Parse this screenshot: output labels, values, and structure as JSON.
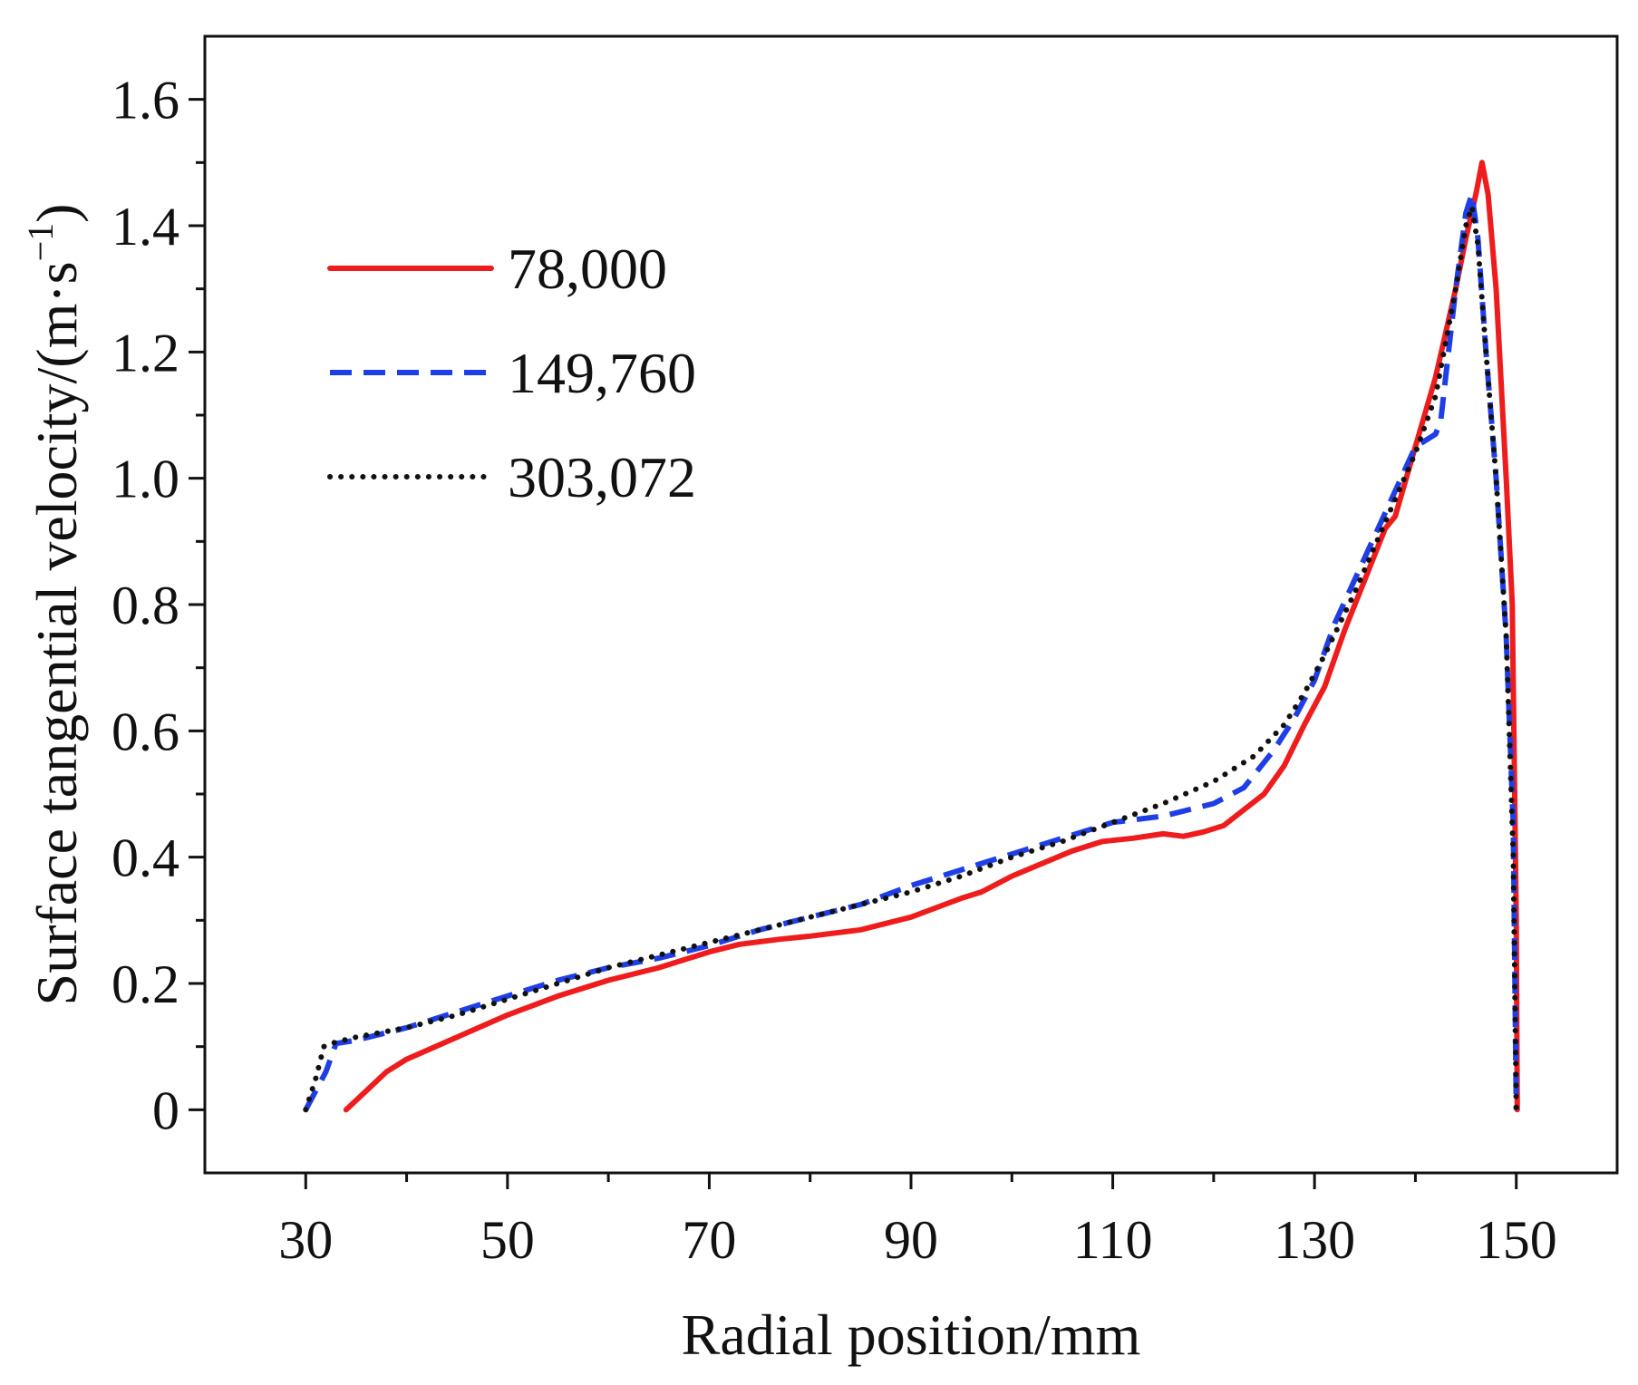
{
  "chart_data": {
    "type": "line",
    "title": "",
    "xlabel": "Radial position/mm",
    "ylabel": {
      "main": "Surface tangential velocity/(m·s",
      "superscript": "−1",
      "tail": ")"
    },
    "xlim": [
      20,
      160
    ],
    "ylim": [
      -0.1,
      1.7
    ],
    "xticks": [
      30,
      50,
      70,
      90,
      110,
      130,
      150
    ],
    "xtick_labels": [
      "30",
      "50",
      "70",
      "90",
      "110",
      "130",
      "150"
    ],
    "xminor_ticks": [
      40,
      60,
      80,
      100,
      120,
      140
    ],
    "yticks": [
      0,
      0.2,
      0.4,
      0.6,
      0.8,
      1.0,
      1.2,
      1.4,
      1.6
    ],
    "ytick_labels": [
      "0",
      "0.2",
      "0.4",
      "0.6",
      "0.8",
      "1.0",
      "1.2",
      "1.4",
      "1.6"
    ],
    "yminor_ticks": [
      0.1,
      0.3,
      0.5,
      0.7,
      0.9,
      1.1,
      1.3,
      1.5
    ],
    "legend_position": "upper-left",
    "series": [
      {
        "name": "78,000",
        "color": "#ee1c1c",
        "style": "solid",
        "x": [
          34,
          36,
          38,
          40,
          45,
          50,
          55,
          60,
          65,
          70,
          73,
          77,
          80,
          85,
          90,
          95,
          97,
          100,
          103,
          106,
          109,
          112,
          115,
          117,
          119,
          121,
          123,
          125,
          127,
          129,
          131,
          133,
          135,
          137,
          138,
          140,
          142,
          144,
          145,
          146,
          146.6,
          147.2,
          148,
          149,
          149.6,
          150,
          150.1
        ],
        "values": [
          0.0,
          0.03,
          0.06,
          0.08,
          0.115,
          0.15,
          0.18,
          0.205,
          0.225,
          0.25,
          0.262,
          0.27,
          0.275,
          0.285,
          0.305,
          0.335,
          0.345,
          0.37,
          0.39,
          0.41,
          0.425,
          0.43,
          0.437,
          0.433,
          0.44,
          0.45,
          0.475,
          0.5,
          0.545,
          0.61,
          0.67,
          0.76,
          0.84,
          0.92,
          0.94,
          1.05,
          1.16,
          1.3,
          1.38,
          1.45,
          1.5,
          1.45,
          1.3,
          1.0,
          0.8,
          0.3,
          0.0
        ]
      },
      {
        "name": "149,760",
        "color": "#1f3fe6",
        "style": "dashed",
        "x": [
          30,
          31,
          32,
          33,
          35,
          40,
          45,
          50,
          55,
          60,
          65,
          70,
          75,
          80,
          85,
          90,
          95,
          100,
          105,
          110,
          115,
          120,
          123,
          126,
          128,
          130,
          132,
          135,
          138,
          140,
          141,
          142,
          142.5,
          143,
          144,
          145,
          145.6,
          146.2,
          147,
          148,
          149,
          149.7,
          150
        ],
        "values": [
          0.0,
          0.03,
          0.06,
          0.105,
          0.11,
          0.13,
          0.155,
          0.18,
          0.205,
          0.225,
          0.24,
          0.26,
          0.285,
          0.305,
          0.325,
          0.355,
          0.38,
          0.405,
          0.43,
          0.455,
          0.465,
          0.485,
          0.51,
          0.57,
          0.62,
          0.68,
          0.77,
          0.875,
          0.98,
          1.05,
          1.06,
          1.07,
          1.09,
          1.16,
          1.3,
          1.42,
          1.45,
          1.38,
          1.2,
          1.0,
          0.75,
          0.45,
          0.0
        ]
      },
      {
        "name": "303,072",
        "color": "#111111",
        "style": "dotted",
        "x": [
          30,
          31,
          31.8,
          32.5,
          35,
          40,
          45,
          50,
          55,
          60,
          65,
          70,
          75,
          80,
          85,
          90,
          95,
          100,
          105,
          110,
          115,
          120,
          124,
          127,
          129,
          131,
          134,
          137,
          140,
          142,
          144,
          145,
          145.6,
          146.2,
          147,
          148,
          149,
          149.7,
          150
        ],
        "values": [
          0.0,
          0.05,
          0.1,
          0.105,
          0.115,
          0.13,
          0.15,
          0.175,
          0.2,
          0.225,
          0.245,
          0.265,
          0.285,
          0.305,
          0.325,
          0.345,
          0.37,
          0.4,
          0.425,
          0.455,
          0.485,
          0.52,
          0.56,
          0.61,
          0.66,
          0.72,
          0.82,
          0.93,
          1.04,
          1.13,
          1.3,
          1.4,
          1.43,
          1.37,
          1.2,
          1.0,
          0.75,
          0.4,
          0.0
        ]
      }
    ]
  }
}
